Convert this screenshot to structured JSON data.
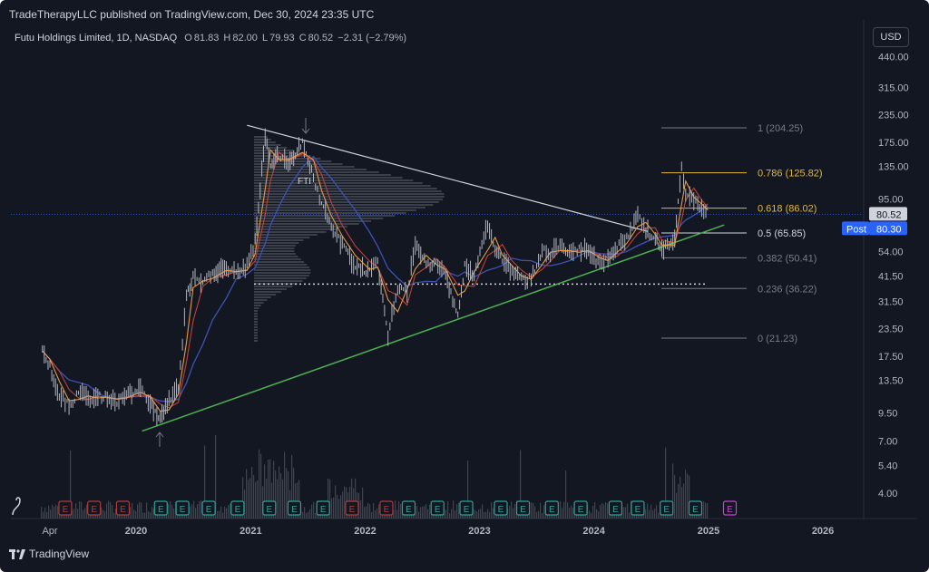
{
  "header": {
    "publisher": "TradeTherapyLLC published on TradingView.com, Dec 30, 2024 23:35 UTC",
    "symbol": "Futu Holdings Limited, 1D, NASDAQ",
    "open_label": "O",
    "open": "81.83",
    "high_label": "H",
    "high": "82.00",
    "low_label": "L",
    "low": "79.93",
    "close_label": "C",
    "close": "80.52",
    "change": "−2.31 (−2.79%)",
    "currency": "USD"
  },
  "colors": {
    "background": "#131722",
    "candle": "#b2b5be",
    "trendline_support": "#4caf50",
    "trendline_resistance": "#d1d4dc",
    "fib_gold": "#e2b93b",
    "fib_gray": "#787b86",
    "ma_blue": "#3f51b5",
    "ma_red": "#c2403a",
    "ma_orange": "#e89a3a",
    "price_label_bg": "#d1d4dc",
    "post_label_bg": "#2962ff",
    "earnings_red": "#b33a3a",
    "earnings_green": "#26a69a",
    "earnings_future": "#c940d1"
  },
  "chart_data": {
    "type": "line",
    "title": "Futu Holdings Limited, 1D, NASDAQ",
    "y_scale": "log",
    "ylim": [
      3.2,
      600
    ],
    "y_ticks": [
      "440.00",
      "315.00",
      "235.00",
      "175.00",
      "135.00",
      "95.00",
      "54.00",
      "41.50",
      "31.50",
      "23.50",
      "17.50",
      "13.50",
      "9.50",
      "7.00",
      "5.40",
      "4.00"
    ],
    "x_ticks": [
      "Apr",
      "2020",
      "2021",
      "2022",
      "2023",
      "2024",
      "2025",
      "2026"
    ],
    "last_price": "80.52",
    "post_price": "80.30",
    "post_label": "Post",
    "fib_levels": [
      {
        "label": "1 (204.25)",
        "value": 204.25
      },
      {
        "label": "0.786 (125.82)",
        "value": 125.82
      },
      {
        "label": "0.618 (86.02)",
        "value": 86.02
      },
      {
        "label": "0.5 (65.85)",
        "value": 65.85
      },
      {
        "label": "0.382 (50.41)",
        "value": 50.41
      },
      {
        "label": "0.236 (36.22)",
        "value": 36.22
      },
      {
        "label": "0 (21.23)",
        "value": 21.23
      }
    ],
    "annotation": "FTI",
    "price_series": [
      [
        "2019-03-08",
        18.5
      ],
      [
        "2019-04-01",
        15.5
      ],
      [
        "2019-05-01",
        11.5
      ],
      [
        "2019-06-01",
        10.2
      ],
      [
        "2019-07-01",
        11.8
      ],
      [
        "2019-08-01",
        11.0
      ],
      [
        "2019-09-01",
        11.3
      ],
      [
        "2019-10-01",
        11.2
      ],
      [
        "2019-11-01",
        10.8
      ],
      [
        "2019-12-01",
        11.5
      ],
      [
        "2020-01-15",
        12.2
      ],
      [
        "2020-02-15",
        10.5
      ],
      [
        "2020-03-18",
        8.9
      ],
      [
        "2020-04-15",
        10.8
      ],
      [
        "2020-05-15",
        12.5
      ],
      [
        "2020-06-10",
        33.0
      ],
      [
        "2020-07-01",
        40.5
      ],
      [
        "2020-08-01",
        38.0
      ],
      [
        "2020-09-01",
        43.0
      ],
      [
        "2020-10-15",
        45.0
      ],
      [
        "2020-11-15",
        42.0
      ],
      [
        "2020-12-20",
        46.0
      ],
      [
        "2021-01-15",
        60.0
      ],
      [
        "2021-02-16",
        185.0
      ],
      [
        "2021-03-05",
        140.0
      ],
      [
        "2021-04-01",
        150.0
      ],
      [
        "2021-05-01",
        140.0
      ],
      [
        "2021-06-15",
        175.0
      ],
      [
        "2021-07-20",
        120.0
      ],
      [
        "2021-08-15",
        90.0
      ],
      [
        "2021-09-15",
        70.0
      ],
      [
        "2021-10-20",
        58.0
      ],
      [
        "2021-12-01",
        46.0
      ],
      [
        "2022-01-15",
        43.0
      ],
      [
        "2022-02-10",
        48.0
      ],
      [
        "2022-03-15",
        21.5
      ],
      [
        "2022-04-15",
        37.0
      ],
      [
        "2022-05-15",
        35.0
      ],
      [
        "2022-06-10",
        57.0
      ],
      [
        "2022-07-15",
        47.0
      ],
      [
        "2022-08-15",
        47.0
      ],
      [
        "2022-09-15",
        42.0
      ],
      [
        "2022-10-24",
        27.0
      ],
      [
        "2022-11-15",
        46.0
      ],
      [
        "2022-12-15",
        41.0
      ],
      [
        "2023-01-27",
        73.0
      ],
      [
        "2023-02-20",
        54.0
      ],
      [
        "2023-03-15",
        50.0
      ],
      [
        "2023-04-15",
        43.0
      ],
      [
        "2023-05-15",
        40.0
      ],
      [
        "2023-06-15",
        40.0
      ],
      [
        "2023-07-20",
        55.0
      ],
      [
        "2023-08-15",
        52.0
      ],
      [
        "2023-09-15",
        57.0
      ],
      [
        "2023-10-15",
        52.0
      ],
      [
        "2023-11-15",
        55.0
      ],
      [
        "2023-12-15",
        54.0
      ],
      [
        "2024-01-20",
        47.0
      ],
      [
        "2024-02-15",
        51.0
      ],
      [
        "2024-03-15",
        56.0
      ],
      [
        "2024-04-15",
        62.0
      ],
      [
        "2024-05-20",
        80.0
      ],
      [
        "2024-06-15",
        68.0
      ],
      [
        "2024-07-15",
        62.0
      ],
      [
        "2024-08-05",
        54.0
      ],
      [
        "2024-09-15",
        62.0
      ],
      [
        "2024-10-07",
        130.0
      ],
      [
        "2024-10-20",
        102.0
      ],
      [
        "2024-11-15",
        92.0
      ],
      [
        "2024-12-10",
        88.0
      ],
      [
        "2024-12-30",
        80.52
      ]
    ],
    "earnings_markers": [
      {
        "date": "2019-05-20",
        "label": "E",
        "kind": "red"
      },
      {
        "date": "2019-08-20",
        "label": "E",
        "kind": "red"
      },
      {
        "date": "2019-11-20",
        "label": "E",
        "kind": "red"
      },
      {
        "date": "2020-03-20",
        "label": "E",
        "kind": "green"
      },
      {
        "date": "2020-05-28",
        "label": "E",
        "kind": "green"
      },
      {
        "date": "2020-08-20",
        "label": "E",
        "kind": "green"
      },
      {
        "date": "2020-11-20",
        "label": "E",
        "kind": "green"
      },
      {
        "date": "2021-03-01",
        "label": "E",
        "kind": "green"
      },
      {
        "date": "2021-05-20",
        "label": "E",
        "kind": "green"
      },
      {
        "date": "2021-08-20",
        "label": "E",
        "kind": "green"
      },
      {
        "date": "2021-11-20",
        "label": "E",
        "kind": "red"
      },
      {
        "date": "2022-03-10",
        "label": "E",
        "kind": "red"
      },
      {
        "date": "2022-05-20",
        "label": "E",
        "kind": "green"
      },
      {
        "date": "2022-08-20",
        "label": "E",
        "kind": "green"
      },
      {
        "date": "2022-11-20",
        "label": "E",
        "kind": "green"
      },
      {
        "date": "2023-03-10",
        "label": "E",
        "kind": "green"
      },
      {
        "date": "2023-05-20",
        "label": "E",
        "kind": "green"
      },
      {
        "date": "2023-08-20",
        "label": "E",
        "kind": "green"
      },
      {
        "date": "2023-11-20",
        "label": "E",
        "kind": "green"
      },
      {
        "date": "2024-03-10",
        "label": "E",
        "kind": "green"
      },
      {
        "date": "2024-05-20",
        "label": "E",
        "kind": "green"
      },
      {
        "date": "2024-08-20",
        "label": "E",
        "kind": "green"
      },
      {
        "date": "2024-11-20",
        "label": "E",
        "kind": "green"
      },
      {
        "date": "2025-03-10",
        "label": "E",
        "kind": "future"
      }
    ],
    "support_trendline": [
      [
        "2020-03-18",
        8.6
      ],
      [
        "2025-01-10",
        69.0
      ]
    ],
    "resistance_trendline": [
      [
        "2021-02-16",
        210.0
      ],
      [
        "2024-06-20",
        67.0
      ]
    ],
    "dotted_level": 38.0
  },
  "footer": {
    "brand": "TradingView"
  }
}
